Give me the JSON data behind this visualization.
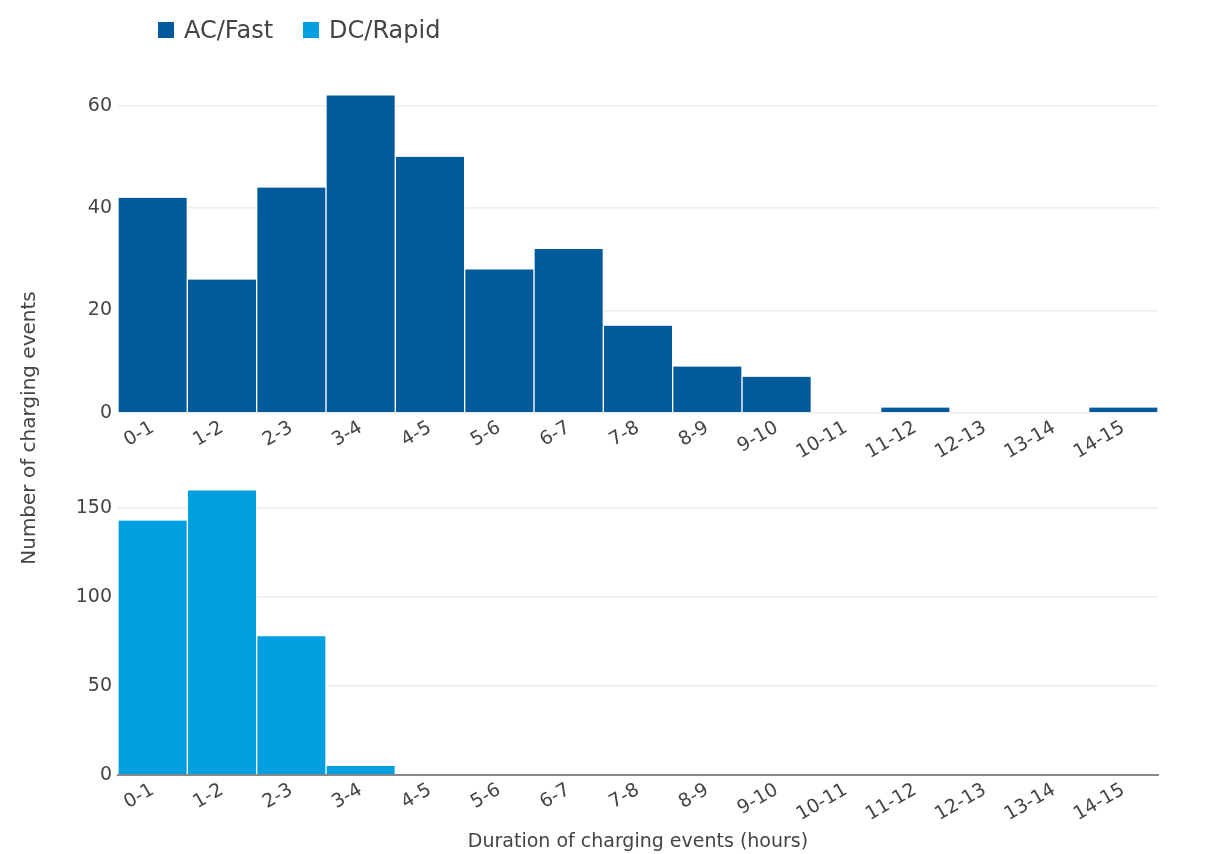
{
  "chart_data": [
    {
      "type": "bar",
      "ylabel": "Number of charging events",
      "categories": [
        "0-1",
        "1-2",
        "2-3",
        "3-4",
        "4-5",
        "5-6",
        "6-7",
        "7-8",
        "8-9",
        "9-10",
        "10-11",
        "11-12",
        "12-13",
        "13-14",
        "14-15"
      ],
      "series": [
        {
          "name": "AC/Fast",
          "color": "#005a9c",
          "values": [
            42,
            26,
            44,
            62,
            50,
            28,
            32,
            17,
            9,
            7,
            0,
            1,
            0,
            0,
            1
          ]
        }
      ],
      "ylim": [
        0,
        62
      ],
      "yticks": [
        0,
        20,
        40,
        60
      ],
      "grid": "y",
      "legend": "top left"
    },
    {
      "type": "bar",
      "xlabel": "Duration of charging events (hours)",
      "categories": [
        "0-1",
        "1-2",
        "2-3",
        "3-4",
        "4-5",
        "5-6",
        "6-7",
        "7-8",
        "8-9",
        "9-10",
        "10-11",
        "11-12",
        "12-13",
        "13-14",
        "14-15"
      ],
      "series": [
        {
          "name": "DC/Rapid",
          "color": "#009fdf",
          "values": [
            143,
            160,
            78,
            5,
            0,
            0,
            0,
            0,
            0,
            0,
            0,
            0,
            0,
            0,
            0
          ]
        }
      ],
      "ylim": [
        0,
        160
      ],
      "yticks": [
        0,
        50,
        100,
        150
      ],
      "grid": "y",
      "legend": "top left"
    }
  ]
}
